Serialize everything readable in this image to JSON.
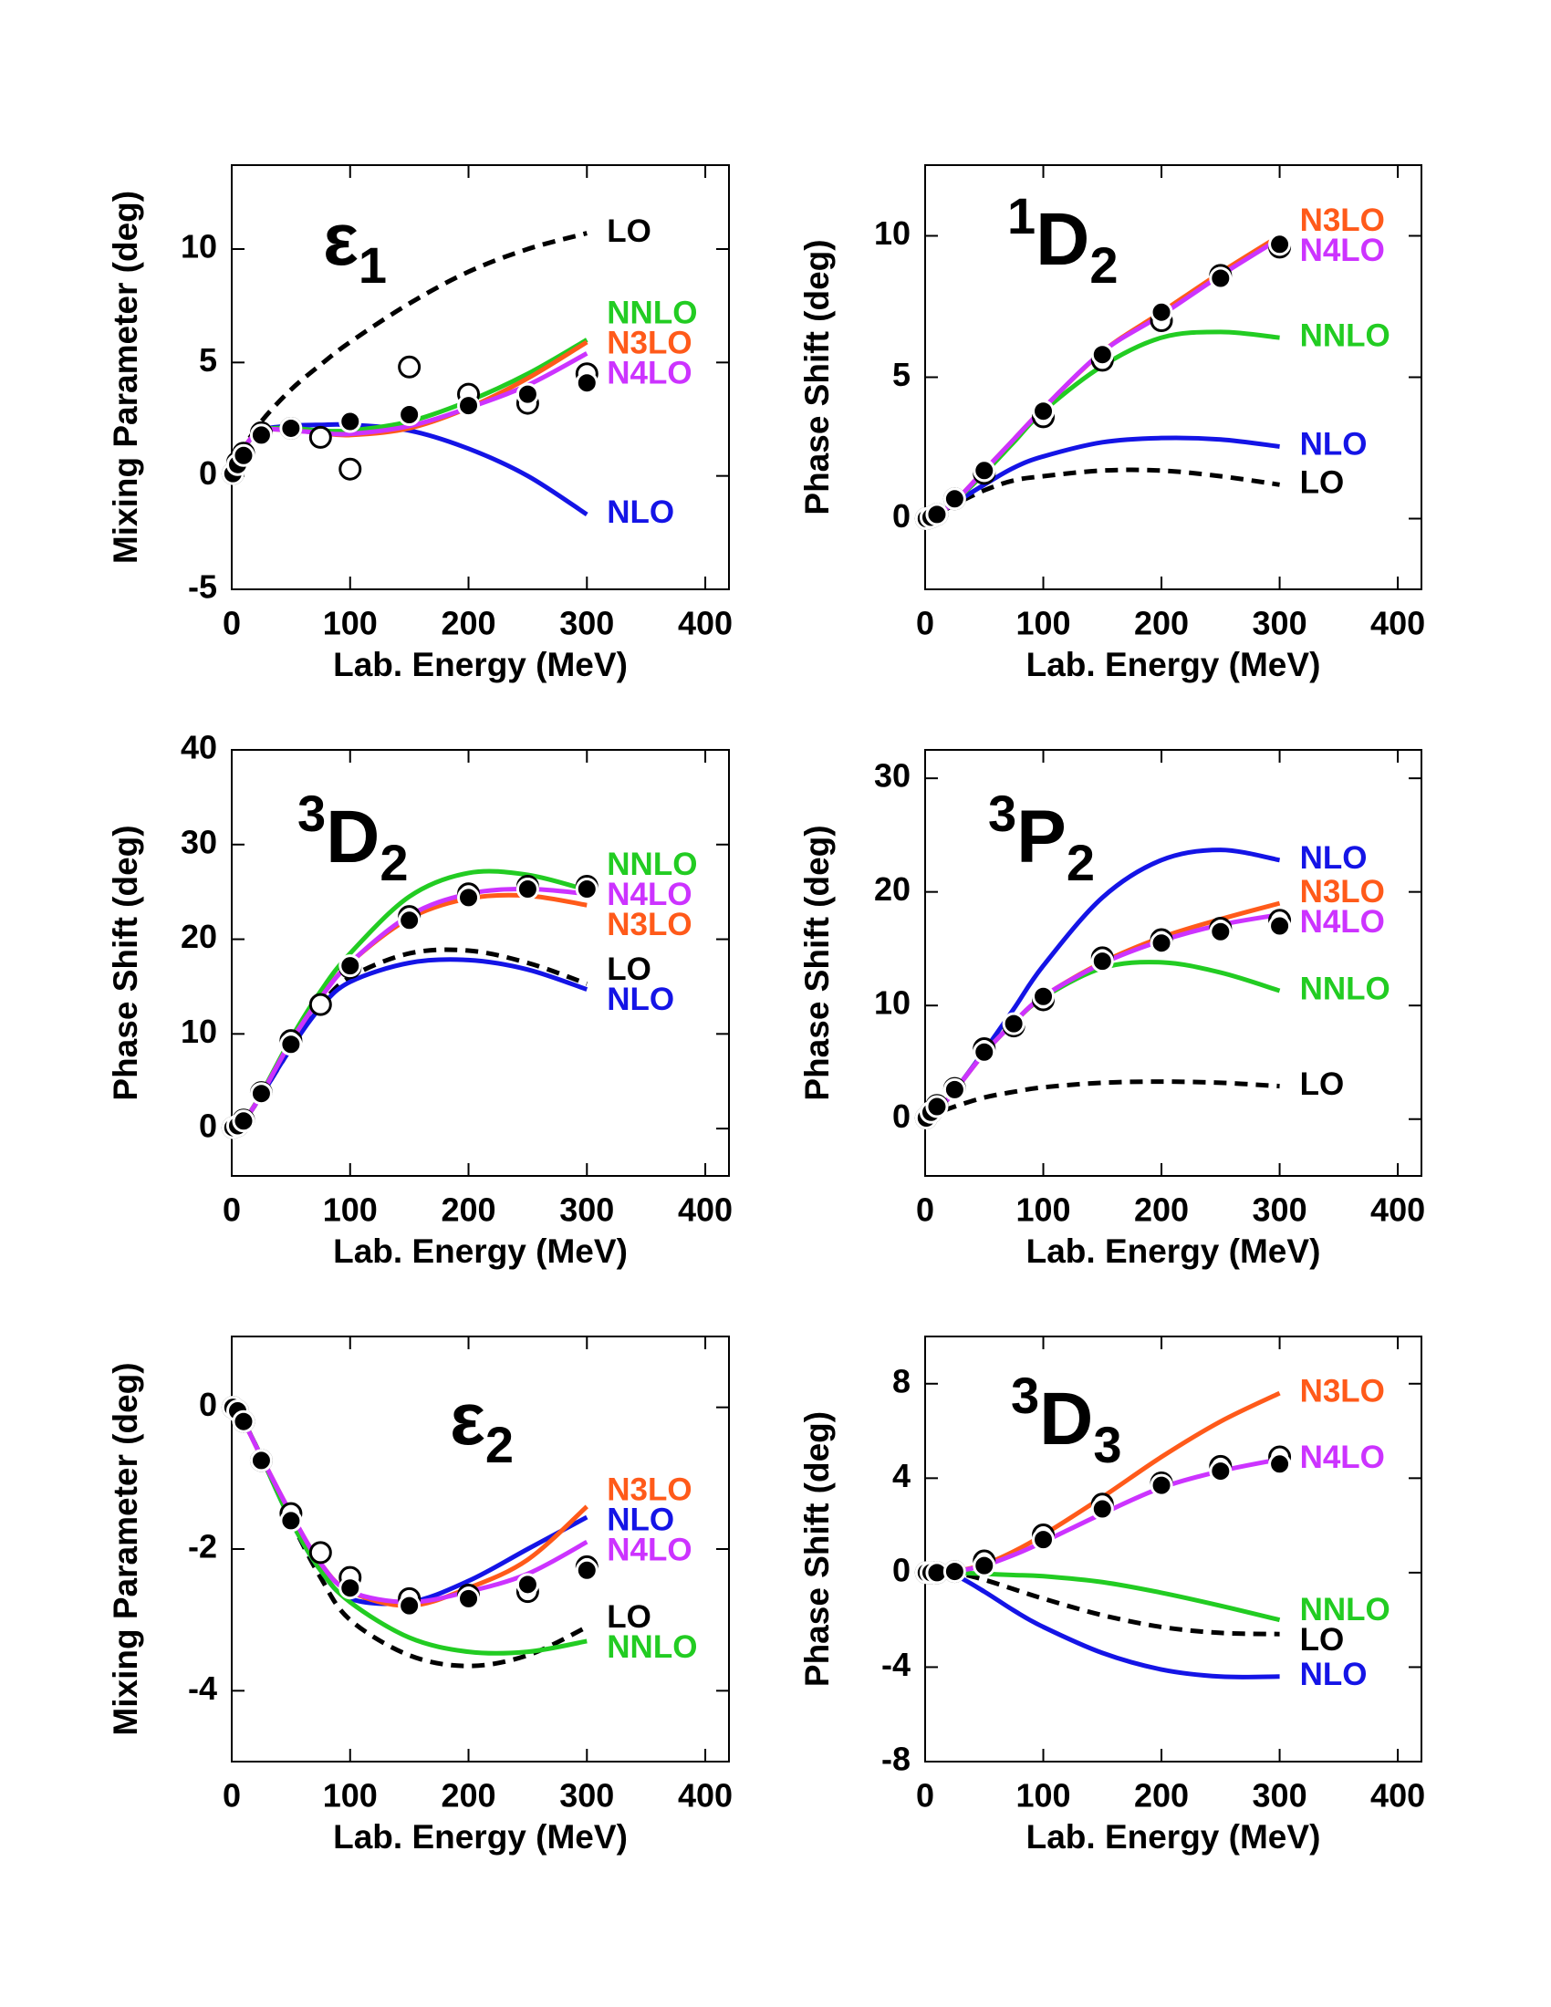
{
  "chart_data": [
    {
      "type": "line",
      "title": [
        {
          "text": "ε",
          "pos": "base"
        },
        {
          "text": "1",
          "pos": "sub"
        }
      ],
      "x_label": "Lab. Energy (MeV)",
      "y_label": "Mixing Parameter (deg)",
      "xlim": [
        0,
        420
      ],
      "xticks": [
        0,
        100,
        200,
        300,
        400
      ],
      "ylim": [
        -5,
        13.7
      ],
      "yticks": [
        -5,
        0,
        5,
        10
      ],
      "x": [
        0,
        10,
        25,
        50,
        75,
        100,
        150,
        200,
        250,
        300
      ],
      "series": [
        {
          "name": "LO",
          "color": "#000000",
          "linestyle": "dashed",
          "values": [
            0,
            1.2,
            2.4,
            3.8,
            4.9,
            5.9,
            7.6,
            9.0,
            10.0,
            10.7
          ]
        },
        {
          "name": "NLO",
          "color": "#1414e6",
          "linestyle": "solid",
          "values": [
            0,
            1.2,
            2.0,
            2.2,
            2.25,
            2.25,
            2.0,
            1.2,
            0,
            -1.7
          ]
        },
        {
          "name": "NNLO",
          "color": "#22cc22",
          "linestyle": "solid",
          "values": [
            0,
            1.2,
            2.0,
            2.1,
            2.0,
            2.0,
            2.4,
            3.3,
            4.5,
            6.0
          ]
        },
        {
          "name": "N3LO",
          "color": "#ff5a1a",
          "linestyle": "solid",
          "values": [
            0,
            1.2,
            2.0,
            2.0,
            1.9,
            1.8,
            2.1,
            3.0,
            4.3,
            5.9
          ]
        },
        {
          "name": "N4LO",
          "color": "#cc33ff",
          "linestyle": "solid",
          "values": [
            0,
            1.2,
            2.0,
            2.0,
            1.9,
            1.85,
            2.2,
            3.0,
            4.0,
            5.4
          ]
        }
      ],
      "points": [
        {
          "marker": "open",
          "x": [
            1,
            5,
            10,
            25,
            50,
            75,
            100,
            150,
            200,
            250,
            300
          ],
          "values": [
            0.1,
            0.6,
            1.0,
            1.9,
            2.1,
            1.7,
            0.3,
            4.8,
            3.6,
            3.2,
            4.5
          ]
        },
        {
          "marker": "filled",
          "x": [
            1,
            5,
            10,
            25,
            50,
            100,
            150,
            200,
            250,
            300
          ],
          "values": [
            0.1,
            0.5,
            0.9,
            1.8,
            2.1,
            2.4,
            2.7,
            3.1,
            3.6,
            4.1
          ]
        }
      ]
    },
    {
      "type": "line",
      "title": [
        {
          "text": "1",
          "pos": "sup"
        },
        {
          "text": "D",
          "pos": "base"
        },
        {
          "text": "2",
          "pos": "sub"
        }
      ],
      "x_label": "Lab. Energy (MeV)",
      "y_label": "Phase Shift (deg)",
      "xlim": [
        0,
        420
      ],
      "xticks": [
        0,
        100,
        200,
        300,
        400
      ],
      "ylim": [
        -2.5,
        12.5
      ],
      "yticks": [
        0,
        5,
        10
      ],
      "x": [
        0,
        10,
        25,
        50,
        75,
        100,
        150,
        200,
        250,
        300
      ],
      "series": [
        {
          "name": "LO",
          "color": "#000000",
          "linestyle": "dashed",
          "values": [
            0,
            0.15,
            0.5,
            1.0,
            1.35,
            1.5,
            1.7,
            1.7,
            1.5,
            1.2
          ]
        },
        {
          "name": "NLO",
          "color": "#1414e6",
          "linestyle": "solid",
          "values": [
            0,
            0.15,
            0.55,
            1.2,
            1.8,
            2.2,
            2.7,
            2.85,
            2.8,
            2.55
          ]
        },
        {
          "name": "NNLO",
          "color": "#22cc22",
          "linestyle": "solid",
          "values": [
            0,
            0.15,
            0.6,
            1.6,
            2.7,
            3.8,
            5.4,
            6.4,
            6.6,
            6.4
          ]
        },
        {
          "name": "N3LO",
          "color": "#ff5a1a",
          "linestyle": "solid",
          "values": [
            0,
            0.15,
            0.6,
            1.7,
            2.8,
            3.9,
            5.9,
            7.3,
            8.7,
            10.0
          ]
        },
        {
          "name": "N4LO",
          "color": "#cc33ff",
          "linestyle": "solid",
          "values": [
            0,
            0.15,
            0.6,
            1.7,
            2.8,
            3.9,
            5.9,
            7.2,
            8.6,
            9.9
          ]
        }
      ],
      "points": [
        {
          "marker": "open",
          "x": [
            1,
            5,
            10,
            25,
            50,
            100,
            150,
            200,
            250,
            300
          ],
          "values": [
            0,
            0.05,
            0.15,
            0.7,
            1.6,
            3.6,
            5.6,
            7.0,
            8.6,
            9.6
          ]
        },
        {
          "marker": "filled",
          "x": [
            1,
            5,
            10,
            25,
            50,
            100,
            150,
            200,
            250,
            300
          ],
          "values": [
            0,
            0.05,
            0.15,
            0.7,
            1.7,
            3.8,
            5.8,
            7.3,
            8.5,
            9.7
          ]
        }
      ]
    },
    {
      "type": "line",
      "title": [
        {
          "text": "3",
          "pos": "sup"
        },
        {
          "text": "D",
          "pos": "base"
        },
        {
          "text": "2",
          "pos": "sub"
        }
      ],
      "x_label": "Lab. Energy (MeV)",
      "y_label": "Phase Shift (deg)",
      "xlim": [
        0,
        420
      ],
      "xticks": [
        0,
        100,
        200,
        300,
        400
      ],
      "ylim": [
        -5,
        40
      ],
      "yticks": [
        0,
        10,
        20,
        30,
        40
      ],
      "x": [
        0,
        10,
        25,
        50,
        75,
        100,
        150,
        200,
        250,
        300
      ],
      "series": [
        {
          "name": "LO",
          "color": "#000000",
          "linestyle": "dashed",
          "values": [
            0,
            0.8,
            3.5,
            8.5,
            13.0,
            16.0,
            18.5,
            18.8,
            17.5,
            15.3
          ]
        },
        {
          "name": "NLO",
          "color": "#1414e6",
          "linestyle": "solid",
          "values": [
            0,
            0.8,
            3.5,
            8.5,
            12.8,
            15.5,
            17.5,
            17.8,
            16.8,
            14.7
          ]
        },
        {
          "name": "NNLO",
          "color": "#22cc22",
          "linestyle": "solid",
          "values": [
            0,
            0.8,
            3.7,
            9.5,
            14.5,
            18.5,
            24.5,
            27,
            26.8,
            25.2
          ]
        },
        {
          "name": "N3LO",
          "color": "#ff5a1a",
          "linestyle": "solid",
          "values": [
            0,
            0.8,
            3.6,
            9.2,
            13.8,
            17.5,
            22.2,
            24.3,
            24.6,
            23.6
          ]
        },
        {
          "name": "N4LO",
          "color": "#cc33ff",
          "linestyle": "solid",
          "values": [
            0,
            0.8,
            3.6,
            9.2,
            13.8,
            17.5,
            22.5,
            24.8,
            25.3,
            24.8
          ]
        }
      ],
      "points": [
        {
          "marker": "open",
          "x": [
            1,
            5,
            10,
            25,
            50,
            75,
            100,
            150,
            200,
            250,
            300
          ],
          "values": [
            0.1,
            0.3,
            0.9,
            3.8,
            9.3,
            13.1,
            17.0,
            22.4,
            24.8,
            25.6,
            25.6
          ]
        },
        {
          "marker": "filled",
          "x": [
            1,
            5,
            10,
            25,
            50,
            100,
            150,
            200,
            250,
            300
          ],
          "values": [
            0.1,
            0.3,
            0.8,
            3.7,
            8.9,
            17.2,
            22.0,
            24.4,
            25.3,
            25.3
          ]
        }
      ]
    },
    {
      "type": "line",
      "title": [
        {
          "text": "3",
          "pos": "sup"
        },
        {
          "text": "P",
          "pos": "base"
        },
        {
          "text": "2",
          "pos": "sub"
        }
      ],
      "x_label": "Lab. Energy (MeV)",
      "y_label": "Phase Shift (deg)",
      "xlim": [
        0,
        420
      ],
      "xticks": [
        0,
        100,
        200,
        300,
        400
      ],
      "ylim": [
        -5,
        32.5
      ],
      "yticks": [
        0,
        10,
        20,
        30
      ],
      "x": [
        0,
        10,
        25,
        50,
        75,
        100,
        150,
        200,
        250,
        300
      ],
      "series": [
        {
          "name": "LO",
          "color": "#000000",
          "linestyle": "dashed",
          "values": [
            0,
            0.5,
            1.1,
            1.9,
            2.4,
            2.8,
            3.2,
            3.3,
            3.2,
            2.9
          ]
        },
        {
          "name": "NLO",
          "color": "#1414e6",
          "linestyle": "solid",
          "values": [
            0,
            0.7,
            2.5,
            6.0,
            9.7,
            13.5,
            19.5,
            22.8,
            23.7,
            22.8
          ]
        },
        {
          "name": "NNLO",
          "color": "#22cc22",
          "linestyle": "solid",
          "values": [
            0,
            0.7,
            2.5,
            5.8,
            8.5,
            10.7,
            13.3,
            13.8,
            12.9,
            11.3
          ]
        },
        {
          "name": "N3LO",
          "color": "#ff5a1a",
          "linestyle": "solid",
          "values": [
            0,
            0.7,
            2.5,
            5.8,
            8.5,
            10.8,
            13.8,
            16.0,
            17.6,
            19.0
          ]
        },
        {
          "name": "N4LO",
          "color": "#cc33ff",
          "linestyle": "solid",
          "values": [
            0,
            0.7,
            2.5,
            5.8,
            8.5,
            10.8,
            13.7,
            15.7,
            17.1,
            18.0
          ]
        }
      ],
      "points": [
        {
          "marker": "open",
          "x": [
            1,
            5,
            10,
            25,
            50,
            75,
            100,
            150,
            200,
            250,
            300
          ],
          "values": [
            0.1,
            0.6,
            1.2,
            2.7,
            6.2,
            8.2,
            10.5,
            14.2,
            15.8,
            16.8,
            17.5
          ]
        },
        {
          "marker": "filled",
          "x": [
            1,
            5,
            10,
            25,
            50,
            75,
            100,
            150,
            200,
            250,
            300
          ],
          "values": [
            0.1,
            0.6,
            1.1,
            2.6,
            5.9,
            8.4,
            10.8,
            13.9,
            15.5,
            16.5,
            17.0
          ]
        }
      ]
    },
    {
      "type": "line",
      "title": [
        {
          "text": "ε",
          "pos": "base"
        },
        {
          "text": "2",
          "pos": "sub"
        }
      ],
      "x_label": "Lab. Energy (MeV)",
      "y_label": "Mixing Parameter (deg)",
      "xlim": [
        0,
        420
      ],
      "xticks": [
        0,
        100,
        200,
        300,
        400
      ],
      "ylim": [
        -5,
        1
      ],
      "yticks": [
        -4,
        -2,
        0
      ],
      "x": [
        0,
        10,
        25,
        50,
        75,
        100,
        150,
        200,
        250,
        300
      ],
      "series": [
        {
          "name": "LO",
          "color": "#000000",
          "linestyle": "dashed",
          "values": [
            0,
            -0.2,
            -0.7,
            -1.6,
            -2.4,
            -3.0,
            -3.5,
            -3.65,
            -3.5,
            -3.1
          ]
        },
        {
          "name": "NLO",
          "color": "#1414e6",
          "linestyle": "solid",
          "values": [
            0,
            -0.2,
            -0.7,
            -1.6,
            -2.3,
            -2.7,
            -2.75,
            -2.45,
            -2.0,
            -1.55
          ]
        },
        {
          "name": "NNLO",
          "color": "#22cc22",
          "linestyle": "solid",
          "values": [
            0,
            -0.2,
            -0.7,
            -1.6,
            -2.3,
            -2.75,
            -3.25,
            -3.45,
            -3.45,
            -3.3
          ]
        },
        {
          "name": "N3LO",
          "color": "#ff5a1a",
          "linestyle": "solid",
          "values": [
            0,
            -0.2,
            -0.7,
            -1.5,
            -2.2,
            -2.6,
            -2.8,
            -2.55,
            -2.15,
            -1.4
          ]
        },
        {
          "name": "N4LO",
          "color": "#cc33ff",
          "linestyle": "solid",
          "values": [
            0,
            -0.2,
            -0.7,
            -1.5,
            -2.2,
            -2.6,
            -2.75,
            -2.6,
            -2.35,
            -1.9
          ]
        }
      ],
      "points": [
        {
          "marker": "open",
          "x": [
            1,
            5,
            10,
            25,
            50,
            75,
            100,
            150,
            200,
            250,
            300
          ],
          "values": [
            0,
            -0.05,
            -0.2,
            -0.75,
            -1.5,
            -2.05,
            -2.4,
            -2.7,
            -2.65,
            -2.6,
            -2.25
          ]
        },
        {
          "marker": "filled",
          "x": [
            1,
            5,
            10,
            25,
            50,
            100,
            150,
            200,
            250,
            300
          ],
          "values": [
            0,
            -0.05,
            -0.2,
            -0.75,
            -1.6,
            -2.55,
            -2.8,
            -2.7,
            -2.5,
            -2.3
          ]
        }
      ]
    },
    {
      "type": "line",
      "title": [
        {
          "text": "3",
          "pos": "sup"
        },
        {
          "text": "D",
          "pos": "base"
        },
        {
          "text": "3",
          "pos": "sub"
        }
      ],
      "x_label": "Lab. Energy (MeV)",
      "y_label": "Phase Shift (deg)",
      "xlim": [
        0,
        420
      ],
      "xticks": [
        0,
        100,
        200,
        300,
        400
      ],
      "ylim": [
        -8,
        10
      ],
      "yticks": [
        -8,
        -4,
        0,
        4,
        8
      ],
      "x": [
        0,
        10,
        25,
        50,
        75,
        100,
        150,
        200,
        250,
        300
      ],
      "series": [
        {
          "name": "LO",
          "color": "#000000",
          "linestyle": "dashed",
          "values": [
            0,
            0,
            0,
            -0.3,
            -0.7,
            -1.1,
            -1.8,
            -2.3,
            -2.55,
            -2.6
          ]
        },
        {
          "name": "NLO",
          "color": "#1414e6",
          "linestyle": "solid",
          "values": [
            0,
            0,
            -0.1,
            -0.8,
            -1.6,
            -2.3,
            -3.4,
            -4.1,
            -4.4,
            -4.4
          ]
        },
        {
          "name": "NNLO",
          "color": "#22cc22",
          "linestyle": "solid",
          "values": [
            0,
            0,
            0,
            -0.05,
            -0.1,
            -0.15,
            -0.4,
            -0.85,
            -1.4,
            -2.0
          ]
        },
        {
          "name": "N3LO",
          "color": "#ff5a1a",
          "linestyle": "solid",
          "values": [
            0,
            0,
            0.05,
            0.35,
            0.9,
            1.6,
            3.2,
            4.9,
            6.4,
            7.6
          ]
        },
        {
          "name": "N4LO",
          "color": "#cc33ff",
          "linestyle": "solid",
          "values": [
            0,
            0,
            0.05,
            0.3,
            0.75,
            1.3,
            2.5,
            3.6,
            4.3,
            4.8
          ]
        }
      ],
      "points": [
        {
          "marker": "open",
          "x": [
            1,
            5,
            10,
            25,
            50,
            100,
            150,
            200,
            250,
            300
          ],
          "values": [
            0,
            0,
            0,
            0.05,
            0.5,
            1.6,
            2.9,
            3.8,
            4.5,
            4.9
          ]
        },
        {
          "marker": "filled",
          "x": [
            1,
            5,
            10,
            25,
            50,
            100,
            150,
            200,
            250,
            300
          ],
          "values": [
            0,
            0,
            0,
            0.05,
            0.3,
            1.4,
            2.7,
            3.7,
            4.3,
            4.6
          ]
        }
      ]
    }
  ]
}
